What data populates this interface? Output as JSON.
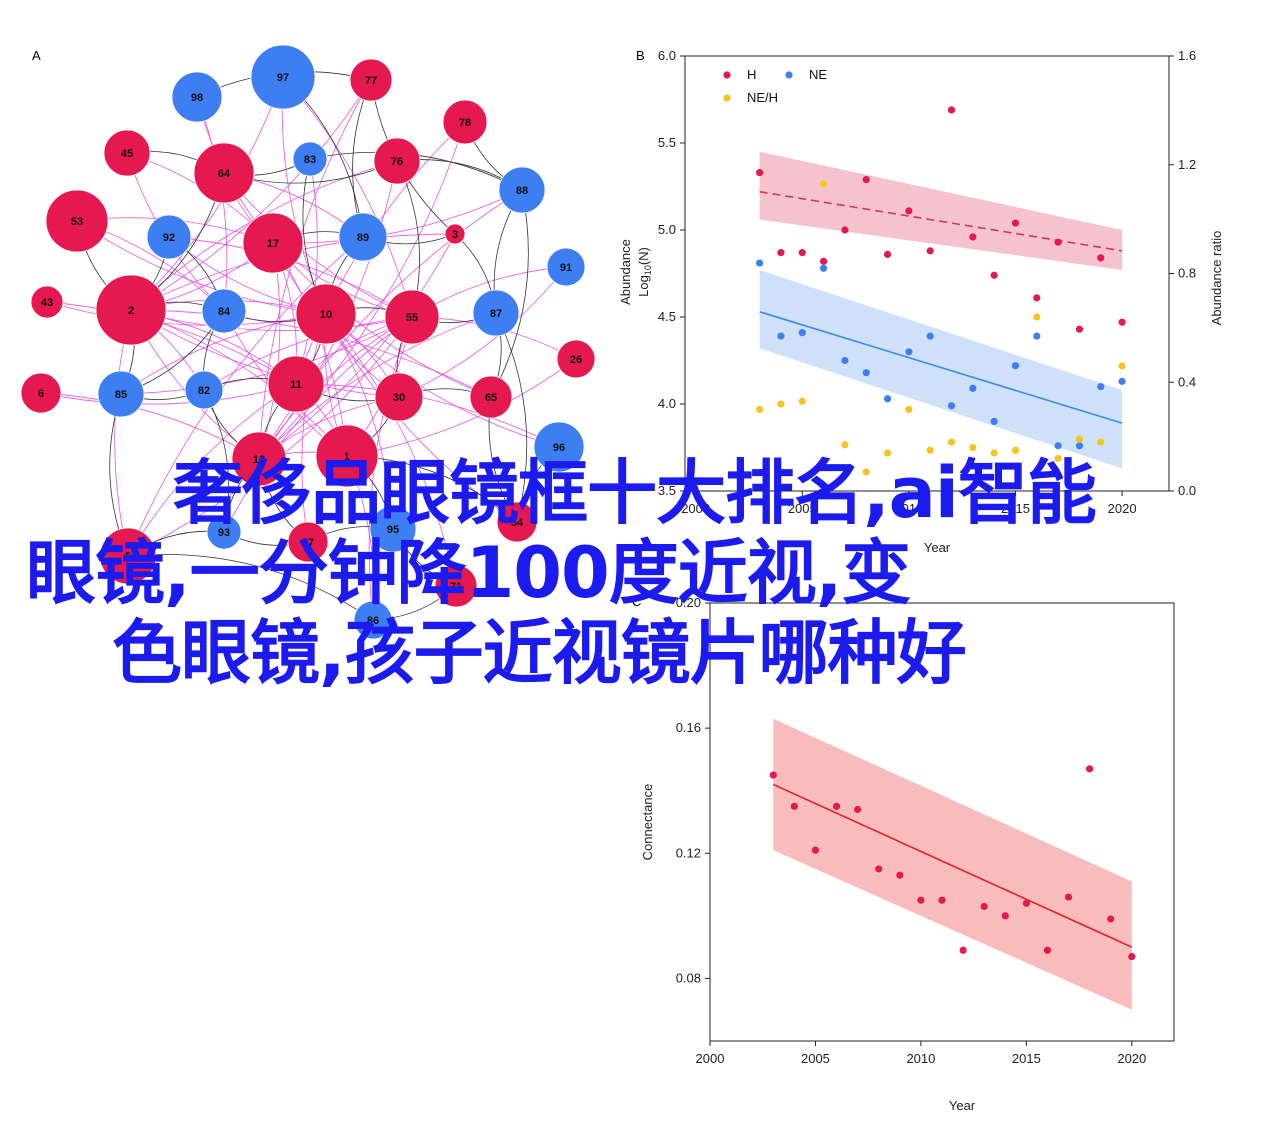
{
  "panels": {
    "a": "A",
    "b": "B",
    "c": "C"
  },
  "overlay": {
    "line1": "奢侈品眼镜框十大排名,ai智能",
    "line2": "眼镜,一分钟降100度近视,变",
    "line3": "色眼镜,孩子近视镜片哪种好"
  },
  "colors": {
    "red": "#e5194f",
    "blue": "#3d7ef2",
    "yellow": "#f6c224",
    "pink_edge": "#e64ce0",
    "dark_edge": "#333333",
    "red_band": "#f2b8c6",
    "blue_band": "#c7dcf8",
    "c_band": "#f8b0b2",
    "c_line": "#e42020",
    "b_red_line": "#d8335c",
    "b_blue_line": "#3a8ae8"
  },
  "network": {
    "nodes": [
      {
        "id": "97",
        "group": "blue"
      },
      {
        "id": "77",
        "group": "red"
      },
      {
        "id": "98",
        "group": "blue"
      },
      {
        "id": "78",
        "group": "red"
      },
      {
        "id": "45",
        "group": "red"
      },
      {
        "id": "64",
        "group": "red"
      },
      {
        "id": "83",
        "group": "blue"
      },
      {
        "id": "76",
        "group": "red"
      },
      {
        "id": "88",
        "group": "blue"
      },
      {
        "id": "53",
        "group": "red"
      },
      {
        "id": "92",
        "group": "blue"
      },
      {
        "id": "17",
        "group": "red"
      },
      {
        "id": "89",
        "group": "blue"
      },
      {
        "id": "3",
        "group": "red"
      },
      {
        "id": "91",
        "group": "blue"
      },
      {
        "id": "43",
        "group": "red"
      },
      {
        "id": "2",
        "group": "red"
      },
      {
        "id": "84",
        "group": "blue"
      },
      {
        "id": "10",
        "group": "red"
      },
      {
        "id": "55",
        "group": "red"
      },
      {
        "id": "87",
        "group": "blue"
      },
      {
        "id": "26",
        "group": "red"
      },
      {
        "id": "6",
        "group": "red"
      },
      {
        "id": "85",
        "group": "blue"
      },
      {
        "id": "82",
        "group": "blue"
      },
      {
        "id": "11",
        "group": "red"
      },
      {
        "id": "30",
        "group": "red"
      },
      {
        "id": "65",
        "group": "red"
      },
      {
        "id": "96",
        "group": "blue"
      },
      {
        "id": "12",
        "group": "red"
      },
      {
        "id": "1",
        "group": "red"
      },
      {
        "id": "93",
        "group": "blue"
      },
      {
        "id": "27",
        "group": "red"
      },
      {
        "id": "95",
        "group": "blue"
      },
      {
        "id": "5",
        "group": "red"
      },
      {
        "id": "86",
        "group": "blue"
      },
      {
        "id": "71",
        "group": "red"
      },
      {
        "id": "54",
        "group": "red"
      }
    ]
  },
  "chart_data": [
    {
      "panel": "B",
      "type": "scatter",
      "xlabel": "Year",
      "ylabel": "Abundance Log10(N)",
      "y2label": "Abundance ratio",
      "xlim": [
        1999.5,
        2022.2
      ],
      "xticks": [
        2000,
        2005,
        2010,
        2015,
        2020
      ],
      "ylim": [
        3.5,
        6.0
      ],
      "yticks": [
        3.5,
        4.0,
        4.5,
        5.0,
        5.5,
        6.0
      ],
      "y2lim": [
        0.0,
        1.6
      ],
      "y2ticks": [
        0.0,
        0.4,
        0.8,
        1.2,
        1.6
      ],
      "grid": false,
      "legend": [
        "H",
        "NE",
        "NE/H"
      ],
      "legend_position": "top-left",
      "series": [
        {
          "name": "H",
          "color": "red",
          "axis": "left",
          "x": [
            2003,
            2004,
            2005,
            2006,
            2007,
            2008,
            2009,
            2010,
            2011,
            2012,
            2013,
            2014,
            2015,
            2016,
            2017,
            2018,
            2019,
            2020
          ],
          "y": [
            5.33,
            4.87,
            4.87,
            4.82,
            5.0,
            5.29,
            4.86,
            5.11,
            4.88,
            5.69,
            4.96,
            4.74,
            5.04,
            4.61,
            4.93,
            4.43,
            4.84,
            4.47
          ],
          "trend": [
            5.22,
            4.88
          ],
          "band": [
            [
              5.45,
              5.0
            ],
            [
              5.06,
              4.77
            ]
          ]
        },
        {
          "name": "NE",
          "color": "blue",
          "axis": "left",
          "x": [
            2003,
            2004,
            2005,
            2006,
            2007,
            2008,
            2009,
            2010,
            2011,
            2012,
            2013,
            2014,
            2015,
            2016,
            2017,
            2018,
            2019,
            2020
          ],
          "y": [
            4.81,
            4.39,
            4.41,
            4.78,
            4.25,
            4.18,
            4.03,
            4.3,
            4.39,
            3.99,
            4.09,
            3.9,
            4.22,
            4.39,
            3.76,
            3.76,
            4.1,
            4.13
          ],
          "trend": [
            4.53,
            3.89
          ],
          "band": [
            [
              4.77,
              4.08
            ],
            [
              4.32,
              3.63
            ]
          ]
        },
        {
          "name": "NE/H",
          "color": "yellow",
          "axis": "right",
          "x": [
            2003,
            2004,
            2005,
            2006,
            2007,
            2008,
            2009,
            2010,
            2011,
            2012,
            2013,
            2014,
            2015,
            2016,
            2017,
            2018,
            2019,
            2020
          ],
          "y": [
            0.3,
            0.32,
            0.33,
            1.13,
            0.17,
            0.07,
            0.14,
            0.3,
            0.15,
            0.18,
            0.16,
            0.14,
            0.15,
            0.64,
            0.12,
            0.19,
            0.18,
            0.46
          ]
        }
      ]
    },
    {
      "panel": "C",
      "type": "scatter",
      "xlabel": "Year",
      "ylabel": "Connectance",
      "xlim": [
        2000,
        2022
      ],
      "xticks": [
        2000,
        2005,
        2010,
        2015,
        2020
      ],
      "ylim": [
        0.06,
        0.2
      ],
      "yticks": [
        0.08,
        0.12,
        0.16,
        0.2
      ],
      "grid": false,
      "series": [
        {
          "color": "red",
          "x": [
            2003,
            2004,
            2005,
            2006,
            2007,
            2008,
            2009,
            2010,
            2011,
            2012,
            2013,
            2014,
            2015,
            2016,
            2017,
            2018,
            2019,
            2020
          ],
          "y": [
            0.145,
            0.135,
            0.121,
            0.135,
            0.134,
            0.115,
            0.113,
            0.105,
            0.105,
            0.089,
            0.103,
            0.1,
            0.104,
            0.089,
            0.106,
            0.147,
            0.099,
            0.087
          ],
          "trend": [
            0.142,
            0.09
          ],
          "band": [
            [
              0.163,
              0.111
            ],
            [
              0.121,
              0.07
            ]
          ]
        }
      ]
    }
  ]
}
